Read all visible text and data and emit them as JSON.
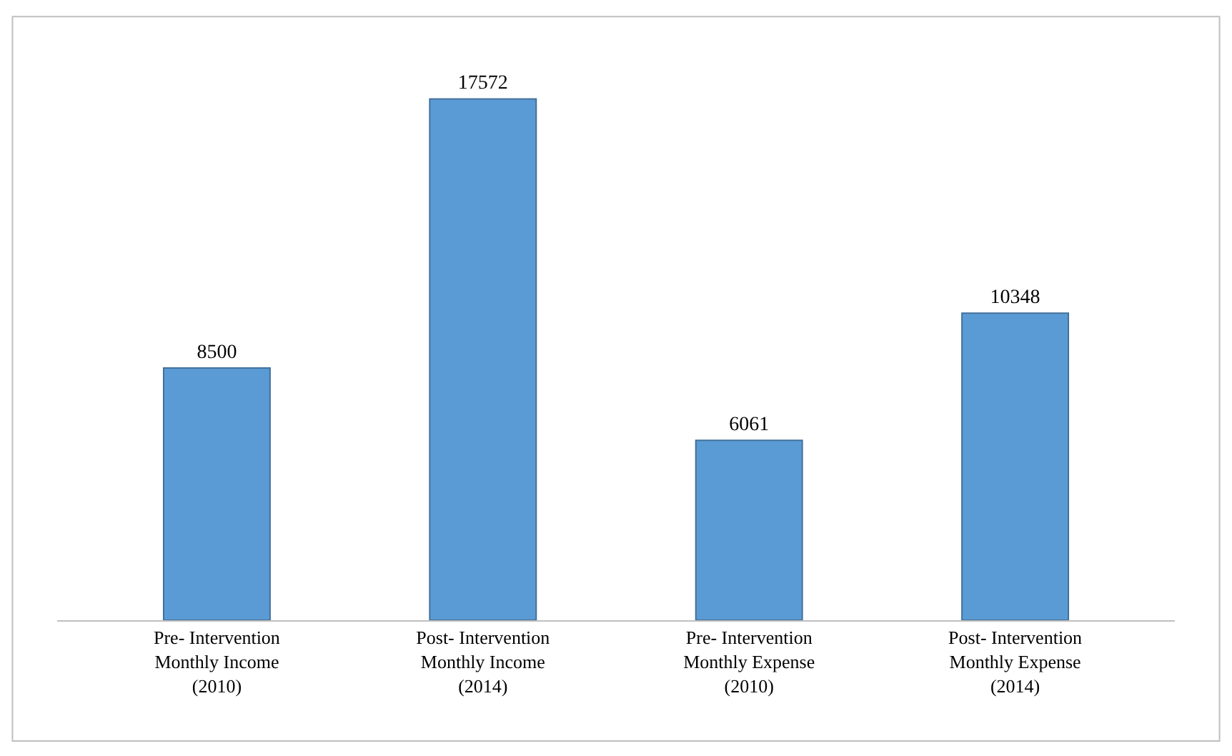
{
  "chart_data": {
    "type": "bar",
    "categories": [
      "Pre- Intervention\nMonthly Income\n(2010)",
      "Post- Intervention\nMonthly Income\n(2014)",
      "Pre- Intervention\nMonthly Expense\n(2010)",
      "Post- Intervention\nMonthly Expense\n(2014)"
    ],
    "values": [
      8500,
      17572,
      6061,
      10348
    ],
    "color": "#5b9bd5",
    "data_labels": true,
    "legend": false
  }
}
